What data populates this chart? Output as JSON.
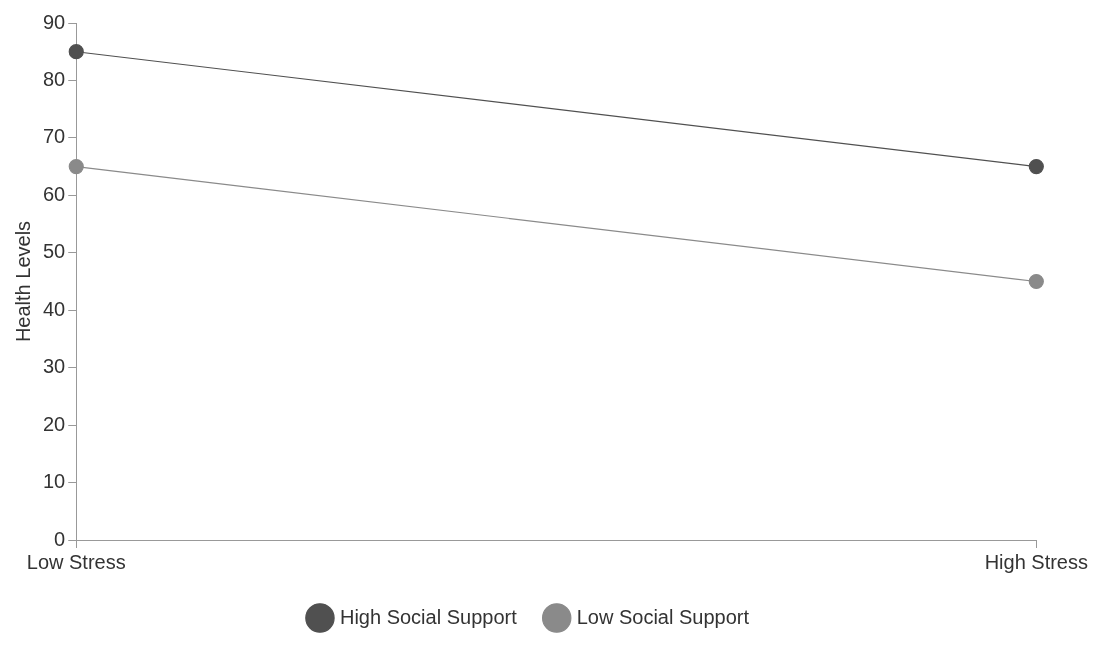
{
  "chart_data": {
    "type": "line",
    "ylabel": "Health Levels",
    "categories": [
      "Low Stress",
      "High Stress"
    ],
    "series": [
      {
        "name": "High Social Support",
        "color": "#505050",
        "values": [
          85,
          65
        ]
      },
      {
        "name": "Low Social Support",
        "color": "#8a8a8a",
        "values": [
          65,
          45
        ]
      }
    ],
    "ylim": [
      0,
      90
    ],
    "yticks": [
      0,
      10,
      20,
      30,
      40,
      50,
      60,
      70,
      80,
      90
    ],
    "grid": false,
    "legend": "bottom",
    "marker": "circle",
    "line_style": "solid"
  }
}
